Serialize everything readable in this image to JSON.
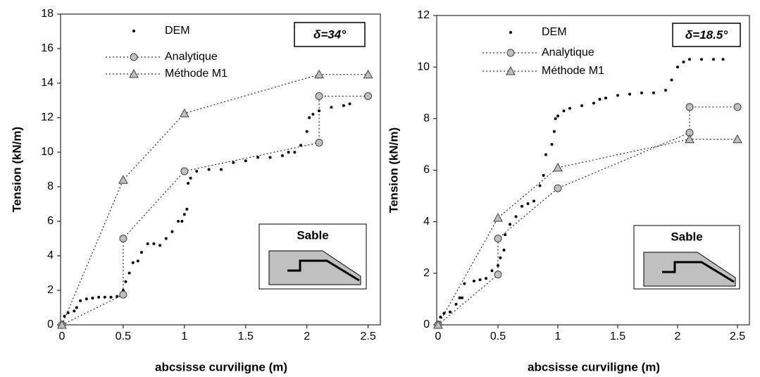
{
  "chart_data": [
    {
      "type": "scatter",
      "annotation": "δ=34°",
      "inset_label": "Sable",
      "x_label": "abcsisse curviligne (m)",
      "y_label": "Tension (kN/m)",
      "xlim": [
        0,
        2.6
      ],
      "xticks": [
        0,
        0.5,
        1,
        1.5,
        2,
        2.5
      ],
      "ylim": [
        0,
        18
      ],
      "yticks": [
        0,
        2,
        4,
        6,
        8,
        10,
        12,
        14,
        16,
        18
      ],
      "series": [
        {
          "name": "DEM",
          "color": "#000000",
          "marker": "dot",
          "line": "none",
          "x": [
            0,
            0.02,
            0.05,
            0.1,
            0.12,
            0.15,
            0.2,
            0.25,
            0.3,
            0.35,
            0.4,
            0.45,
            0.48,
            0.5,
            0.52,
            0.55,
            0.58,
            0.62,
            0.65,
            0.7,
            0.75,
            0.8,
            0.85,
            0.9,
            0.95,
            0.98,
            1.0,
            1.02,
            1.03,
            1.05,
            1.1,
            1.2,
            1.3,
            1.4,
            1.5,
            1.6,
            1.7,
            1.8,
            1.85,
            1.9,
            1.95,
            2.0,
            2.02,
            2.05,
            2.1,
            2.2,
            2.3,
            2.35
          ],
          "values": [
            0,
            0.5,
            0.7,
            0.8,
            1.0,
            1.4,
            1.5,
            1.55,
            1.6,
            1.6,
            1.6,
            1.65,
            1.7,
            2.0,
            2.5,
            3.0,
            3.6,
            3.7,
            4.2,
            4.7,
            4.7,
            4.6,
            5.0,
            5.4,
            6.0,
            6.0,
            6.4,
            6.7,
            8.2,
            8.5,
            8.9,
            9.0,
            9.0,
            9.4,
            9.5,
            9.7,
            9.7,
            9.8,
            10.0,
            10.0,
            10.4,
            11.2,
            12.0,
            12.2,
            12.4,
            12.6,
            12.7,
            12.8
          ]
        },
        {
          "name": "Analytique",
          "color": "#bfbfbf",
          "marker": "circle",
          "line": "dotted",
          "x": [
            0,
            0.5,
            0.5,
            1.0,
            2.1,
            2.1,
            2.5
          ],
          "values": [
            0,
            1.75,
            5.0,
            8.9,
            10.55,
            13.25,
            13.25
          ]
        },
        {
          "name": "Méthode M1",
          "color": "#bfbfbf",
          "marker": "triangle",
          "line": "dotted",
          "x": [
            0,
            0.5,
            1.0,
            2.1,
            2.5
          ],
          "values": [
            0,
            8.4,
            12.25,
            14.5,
            14.5
          ]
        }
      ]
    },
    {
      "type": "scatter",
      "annotation": "δ=18.5°",
      "inset_label": "Sable",
      "x_label": "abcsisse curviligne (m)",
      "y_label": "Tension (kN/m)",
      "xlim": [
        0,
        2.6
      ],
      "xticks": [
        0,
        0.5,
        1,
        1.5,
        2,
        2.5
      ],
      "ylim": [
        0,
        12
      ],
      "yticks": [
        0,
        2,
        4,
        6,
        8,
        10,
        12
      ],
      "series": [
        {
          "name": "DEM",
          "color": "#000000",
          "marker": "dot",
          "line": "none",
          "x": [
            0,
            0.02,
            0.05,
            0.1,
            0.15,
            0.18,
            0.2,
            0.22,
            0.3,
            0.35,
            0.4,
            0.45,
            0.5,
            0.52,
            0.55,
            0.56,
            0.6,
            0.65,
            0.7,
            0.75,
            0.8,
            0.85,
            0.88,
            0.9,
            0.95,
            0.97,
            0.98,
            1.0,
            1.05,
            1.1,
            1.2,
            1.3,
            1.35,
            1.4,
            1.5,
            1.6,
            1.7,
            1.8,
            1.9,
            1.95,
            2.0,
            2.05,
            2.1,
            2.2,
            2.3,
            2.38
          ],
          "values": [
            0,
            0.3,
            0.45,
            0.5,
            0.8,
            1.05,
            1.05,
            1.6,
            1.7,
            1.75,
            1.8,
            2.1,
            2.3,
            2.6,
            2.9,
            3.5,
            3.9,
            4.2,
            4.6,
            4.7,
            4.8,
            5.4,
            5.8,
            6.6,
            7.0,
            7.5,
            8.0,
            8.1,
            8.3,
            8.4,
            8.5,
            8.6,
            8.75,
            8.8,
            8.9,
            8.95,
            9.0,
            9.0,
            9.1,
            9.5,
            10.0,
            10.2,
            10.3,
            10.3,
            10.3,
            10.3
          ]
        },
        {
          "name": "Analytique",
          "color": "#bfbfbf",
          "marker": "circle",
          "line": "dotted",
          "x": [
            0,
            0.5,
            0.5,
            1.0,
            2.1,
            2.1,
            2.5
          ],
          "values": [
            0,
            1.95,
            3.35,
            5.3,
            7.45,
            8.45,
            8.45
          ]
        },
        {
          "name": "Méthode M1",
          "color": "#bfbfbf",
          "marker": "triangle",
          "line": "dotted",
          "x": [
            0,
            0.5,
            1.0,
            2.1,
            2.5
          ],
          "values": [
            0,
            4.15,
            6.1,
            7.2,
            7.2
          ]
        }
      ]
    }
  ]
}
